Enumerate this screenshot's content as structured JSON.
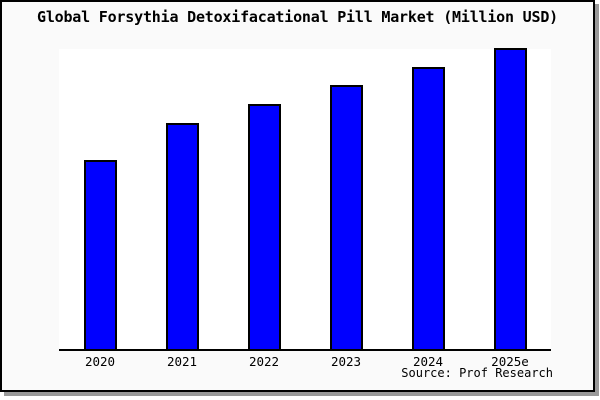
{
  "title": "Global Forsythia Detoxifacational Pill Market (Million USD)",
  "source": "Source: Prof Research",
  "colors": {
    "bar_fill": "#0000ff",
    "bar_border": "#000000",
    "frame_background": "#fafafa",
    "plot_background": "#ffffff",
    "frame_border": "#000000",
    "frame_shadow": "#999999",
    "axis_line": "#000000",
    "text": "#000000"
  },
  "chart_data": {
    "type": "bar",
    "title": "Global Forsythia Detoxifacational Pill Market (Million USD)",
    "categories": [
      "2020",
      "2021",
      "2022",
      "2023",
      "2024",
      "2025e"
    ],
    "values": [
      62.5,
      75.0,
      81.3,
      87.6,
      93.6,
      100
    ],
    "values_note": "No y-axis or data labels are shown in the chart; values estimated from bar pixel heights, normalized so the 2025e bar = 100.",
    "xlabel": "",
    "ylabel": "",
    "ylim": [
      0,
      100
    ],
    "grid": false,
    "legend": false,
    "single_series_color": "#0000ff",
    "annotations": [
      "Source: Prof Research"
    ]
  }
}
